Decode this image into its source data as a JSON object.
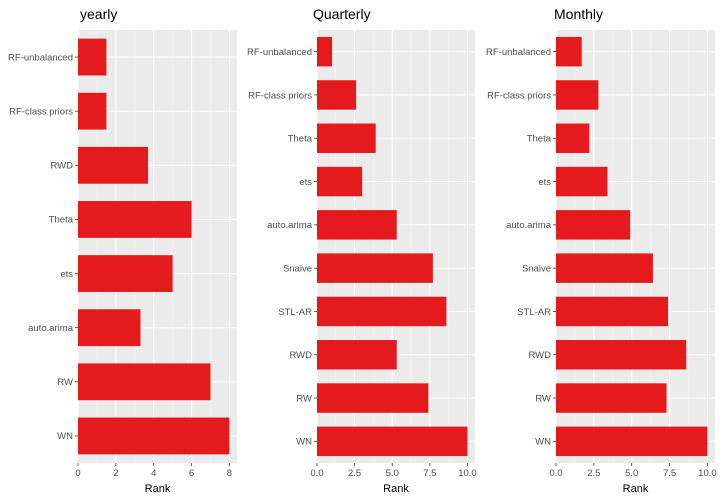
{
  "chart_data": [
    {
      "type": "bar",
      "orientation": "horizontal",
      "title": "yearly",
      "xlabel": "Rank",
      "ylabel": "",
      "xlim": [
        0,
        8.4
      ],
      "xticks": [
        0,
        2,
        4,
        6,
        8
      ],
      "xtick_labels": [
        "0",
        "2",
        "4",
        "6",
        "8"
      ],
      "categories": [
        "RF-unbalanced",
        "RF-class priors",
        "RWD",
        "Theta",
        "ets",
        "auto.arima",
        "RW",
        "WN"
      ],
      "values": [
        1.5,
        1.5,
        3.7,
        6.0,
        5.0,
        3.3,
        7.0,
        8.0
      ],
      "bar_color": "#e41a1c",
      "panel_bg": "#ebebeb",
      "grid": true,
      "legend": "none"
    },
    {
      "type": "bar",
      "orientation": "horizontal",
      "title": "Quarterly",
      "xlabel": "Rank",
      "ylabel": "",
      "xlim": [
        0,
        10.5
      ],
      "xticks": [
        0,
        2.5,
        5,
        7.5,
        10
      ],
      "xtick_labels": [
        "0.0",
        "2.5",
        "5.0",
        "7.5",
        "10.0"
      ],
      "categories": [
        "RF-unbalanced",
        "RF-class priors",
        "Theta",
        "ets",
        "auto.arima",
        "Snaive",
        "STL-AR",
        "RWD",
        "RW",
        "WN"
      ],
      "values": [
        1.0,
        2.6,
        3.9,
        3.0,
        5.3,
        7.7,
        8.6,
        5.3,
        7.4,
        10.0
      ],
      "bar_color": "#e41a1c",
      "panel_bg": "#ebebeb",
      "grid": true,
      "legend": "none"
    },
    {
      "type": "bar",
      "orientation": "horizontal",
      "title": "Monthly",
      "xlabel": "Rank",
      "ylabel": "",
      "xlim": [
        0,
        10.5
      ],
      "xticks": [
        0,
        2.5,
        5,
        7.5,
        10
      ],
      "xtick_labels": [
        "0.0",
        "2.5",
        "5.0",
        "7.5",
        "10.0"
      ],
      "categories": [
        "RF-unbalanced",
        "RF-class priors",
        "Theta",
        "ets",
        "auto.arima",
        "Snaive",
        "STL-AR",
        "RWD",
        "RW",
        "WN"
      ],
      "values": [
        1.7,
        2.8,
        2.2,
        3.4,
        4.9,
        6.4,
        7.4,
        8.6,
        7.3,
        10.0
      ],
      "bar_color": "#e41a1c",
      "panel_bg": "#ebebeb",
      "grid": true,
      "legend": "none"
    }
  ]
}
